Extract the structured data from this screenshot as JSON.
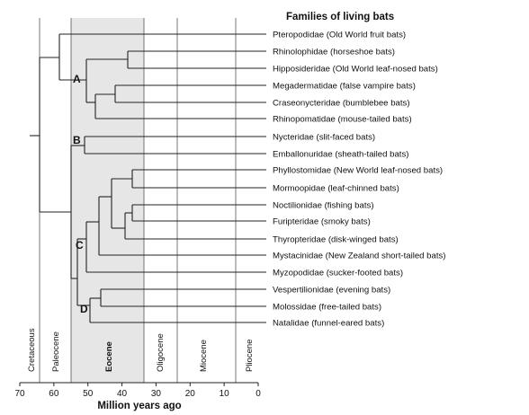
{
  "title": "Families of living bats",
  "families": [
    "Pteropodidae (Old World fruit bats)",
    "Rhinolophidae (horseshoe bats)",
    "Hipposideridae (Old World leaf-nosed bats)",
    "Megadermatidae (false vampire bats)",
    "Craseonycteridae (bumblebee bats)",
    "Rhinopomatidae (mouse-tailed bats)",
    "Nycteridae (slit-faced bats)",
    "Emballonuridae (sheath-tailed bats)",
    "Phyllostomidae (New World leaf-nosed bats)",
    "Mormoopidae (leaf-chinned bats)",
    "Noctilionidae (fishing bats)",
    "Furipteridae (smoky bats)",
    "Thyropteridae (disk-winged bats)",
    "Mystacinidae (New Zealand short-tailed bats)",
    "Myzopodidae (sucker-footed bats)",
    "Vespertilionidae (evening bats)",
    "Molossidae (free-tailed bats)",
    "Natalidae (funnel-eared bats)"
  ],
  "clade_letters": [
    "A",
    "B",
    "C",
    "D"
  ],
  "epochs": [
    "Cretaceous",
    "Paleocene",
    "Eocene",
    "Oligocene",
    "Miocene",
    "Pliocene"
  ],
  "axis": {
    "title": "Million years ago",
    "ticks": [
      "70",
      "60",
      "50",
      "40",
      "30",
      "20",
      "10",
      "0"
    ],
    "range": [
      70,
      0
    ]
  },
  "colors": {
    "eocene_shade": "#e6e6e6",
    "line": "#222222"
  }
}
